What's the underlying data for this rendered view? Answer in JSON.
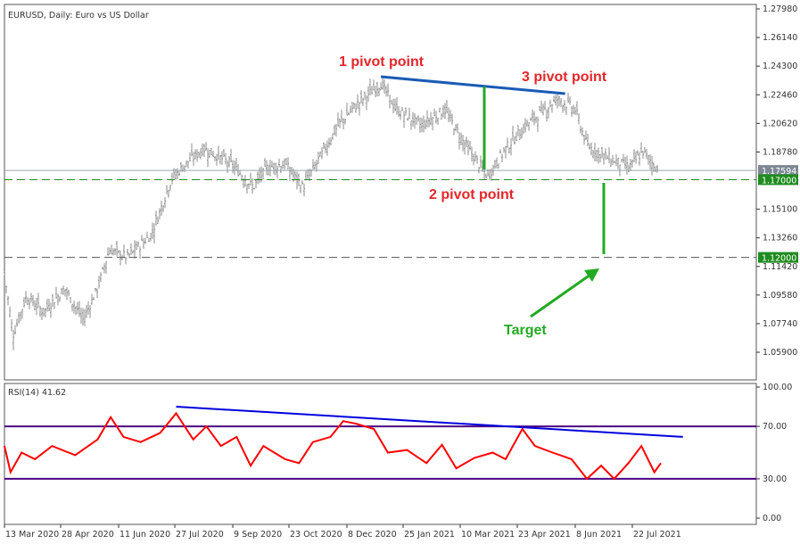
{
  "title": "EURUSD, Daily: Euro vs US Dollar",
  "colors": {
    "bars": "#8c8c8c",
    "rsi": "#ff0000",
    "rsi_levels": "#4b0082",
    "trendline": "#1a5bb5",
    "rsi_trendline": "#0000dd",
    "green": "#22aa22",
    "annotation": "#e3262b",
    "current_price_bg": "#7d8894",
    "level_bg": "#1f8c1f"
  },
  "annotations": {
    "pivot1": "1 pivot point",
    "pivot2": "2 pivot point",
    "pivot3": "3 pivot point",
    "target": "Target"
  },
  "chart_data": [
    {
      "type": "ohlc",
      "title": "EURUSD, Daily: Euro vs US Dollar",
      "ylim": [
        1.05,
        1.2815
      ],
      "y_ticks": [
        "1.27980",
        "1.26140",
        "1.24300",
        "1.22460",
        "1.20620",
        "1.18780",
        "1.15100",
        "1.13260",
        "1.11420",
        "1.09580",
        "1.07740",
        "1.05900"
      ],
      "x_ticks": [
        "13 Mar 2020",
        "28 Apr 2020",
        "11 Jun 2020",
        "27 Jul 2020",
        "9 Sep 2020",
        "23 Oct 2020",
        "8 Dec 2020",
        "25 Jan 2021",
        "10 Mar 2021",
        "23 Apr 2021",
        "8 Jun 2021",
        "22 Jul 2021"
      ],
      "x_tick_dates": [
        "2020-03-13",
        "2020-04-28",
        "2020-06-11",
        "2020-07-27",
        "2020-09-09",
        "2020-10-23",
        "2020-12-08",
        "2021-01-25",
        "2021-03-10",
        "2021-04-23",
        "2021-06-08",
        "2021-07-22"
      ],
      "close_path": [
        [
          "2020-03-13",
          1.11
        ],
        [
          "2020-03-20",
          1.07
        ],
        [
          "2020-03-31",
          1.095
        ],
        [
          "2020-04-14",
          1.085
        ],
        [
          "2020-05-01",
          1.1
        ],
        [
          "2020-05-15",
          1.08
        ],
        [
          "2020-05-26",
          1.1
        ],
        [
          "2020-06-04",
          1.125
        ],
        [
          "2020-06-18",
          1.12
        ],
        [
          "2020-07-08",
          1.135
        ],
        [
          "2020-07-24",
          1.17
        ],
        [
          "2020-08-04",
          1.18
        ],
        [
          "2020-08-18",
          1.19
        ],
        [
          "2020-09-08",
          1.18
        ],
        [
          "2020-09-25",
          1.165
        ],
        [
          "2020-10-06",
          1.178
        ],
        [
          "2020-10-20",
          1.18
        ],
        [
          "2020-11-03",
          1.165
        ],
        [
          "2020-11-17",
          1.185
        ],
        [
          "2020-12-01",
          1.205
        ],
        [
          "2020-12-16",
          1.218
        ],
        [
          "2021-01-06",
          1.232
        ],
        [
          "2021-01-19",
          1.215
        ],
        [
          "2021-02-08",
          1.205
        ],
        [
          "2021-02-26",
          1.215
        ],
        [
          "2021-03-12",
          1.195
        ],
        [
          "2021-03-31",
          1.172
        ],
        [
          "2021-04-14",
          1.19
        ],
        [
          "2021-04-30",
          1.205
        ],
        [
          "2021-05-25",
          1.222
        ],
        [
          "2021-06-08",
          1.215
        ],
        [
          "2021-06-17",
          1.192
        ],
        [
          "2021-07-01",
          1.185
        ],
        [
          "2021-07-20",
          1.178
        ],
        [
          "2021-07-30",
          1.188
        ],
        [
          "2021-08-11",
          1.176
        ]
      ],
      "current_price": "1.17594",
      "levels": [
        {
          "value": 1.17,
          "label": "1.17000"
        },
        {
          "value": 1.12,
          "label": "1.12000"
        }
      ],
      "trendline": [
        [
          "2021-01-06",
          1.2362
        ],
        [
          "2021-05-31",
          1.2253
        ]
      ]
    },
    {
      "type": "line",
      "title": "RSI(14) 41.62",
      "ylim": [
        0,
        100
      ],
      "y_ticks": [
        "100.00",
        "70.00",
        "30.00",
        "0.00"
      ],
      "levels": [
        70,
        30
      ],
      "series": [
        {
          "name": "RSI(14)",
          "points": [
            [
              "2020-03-13",
              55
            ],
            [
              "2020-03-18",
              35
            ],
            [
              "2020-03-27",
              50
            ],
            [
              "2020-04-07",
              45
            ],
            [
              "2020-04-21",
              55
            ],
            [
              "2020-05-09",
              48
            ],
            [
              "2020-05-26",
              60
            ],
            [
              "2020-06-05",
              77
            ],
            [
              "2020-06-15",
              62
            ],
            [
              "2020-06-29",
              58
            ],
            [
              "2020-07-15",
              65
            ],
            [
              "2020-07-28",
              80
            ],
            [
              "2020-08-10",
              60
            ],
            [
              "2020-08-20",
              70
            ],
            [
              "2020-08-31",
              55
            ],
            [
              "2020-09-12",
              62
            ],
            [
              "2020-09-23",
              40
            ],
            [
              "2020-10-03",
              55
            ],
            [
              "2020-10-20",
              45
            ],
            [
              "2020-10-31",
              42
            ],
            [
              "2020-11-11",
              58
            ],
            [
              "2020-11-25",
              62
            ],
            [
              "2020-12-05",
              74
            ],
            [
              "2020-12-16",
              72
            ],
            [
              "2020-12-31",
              68
            ],
            [
              "2021-01-12",
              50
            ],
            [
              "2021-01-28",
              52
            ],
            [
              "2021-02-12",
              42
            ],
            [
              "2021-02-24",
              56
            ],
            [
              "2021-03-07",
              38
            ],
            [
              "2021-03-21",
              46
            ],
            [
              "2021-04-04",
              50
            ],
            [
              "2021-04-14",
              45
            ],
            [
              "2021-04-27",
              68
            ],
            [
              "2021-05-07",
              55
            ],
            [
              "2021-05-21",
              50
            ],
            [
              "2021-06-05",
              45
            ],
            [
              "2021-06-17",
              30
            ],
            [
              "2021-06-28",
              40
            ],
            [
              "2021-07-08",
              30
            ],
            [
              "2021-07-19",
              42
            ],
            [
              "2021-07-29",
              55
            ],
            [
              "2021-08-08",
              35
            ],
            [
              "2021-08-13",
              42
            ]
          ]
        }
      ],
      "trendline": [
        [
          "2020-07-28",
          85
        ],
        [
          "2021-08-30",
          62
        ]
      ]
    }
  ]
}
